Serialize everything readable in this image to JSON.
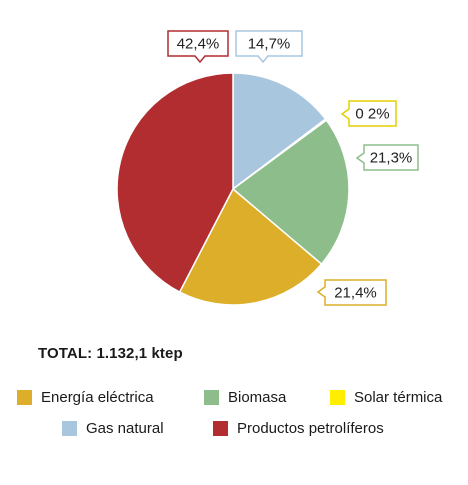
{
  "chart_data": {
    "type": "pie",
    "title": "",
    "slices": [
      {
        "name": "Gas natural",
        "value": 14.7,
        "label": "14,7%",
        "color": "#a9c6df"
      },
      {
        "name": "Solar térmica",
        "value": 0.2,
        "label": "0 2%",
        "color": "#ffee00"
      },
      {
        "name": "Biomasa",
        "value": 21.3,
        "label": "21,3%",
        "color": "#8dbd8b"
      },
      {
        "name": "Energía eléctrica",
        "value": 21.4,
        "label": "21,4%",
        "color": "#dcae2a"
      },
      {
        "name": "Productos petrolíferos",
        "value": 42.4,
        "label": "42,4%",
        "color": "#b22d30"
      }
    ],
    "legend_position": "bottom"
  },
  "total_text": "TOTAL: 1.132,1 ktep",
  "legend": [
    {
      "label": "Energía eléctrica",
      "color": "#dcae2a"
    },
    {
      "label": "Biomasa",
      "color": "#8dbd8b"
    },
    {
      "label": "Solar térmica",
      "color": "#ffee00"
    },
    {
      "label": "Gas natural",
      "color": "#a9c6df"
    },
    {
      "label": "Productos petrolíferos",
      "color": "#b22d30"
    }
  ]
}
